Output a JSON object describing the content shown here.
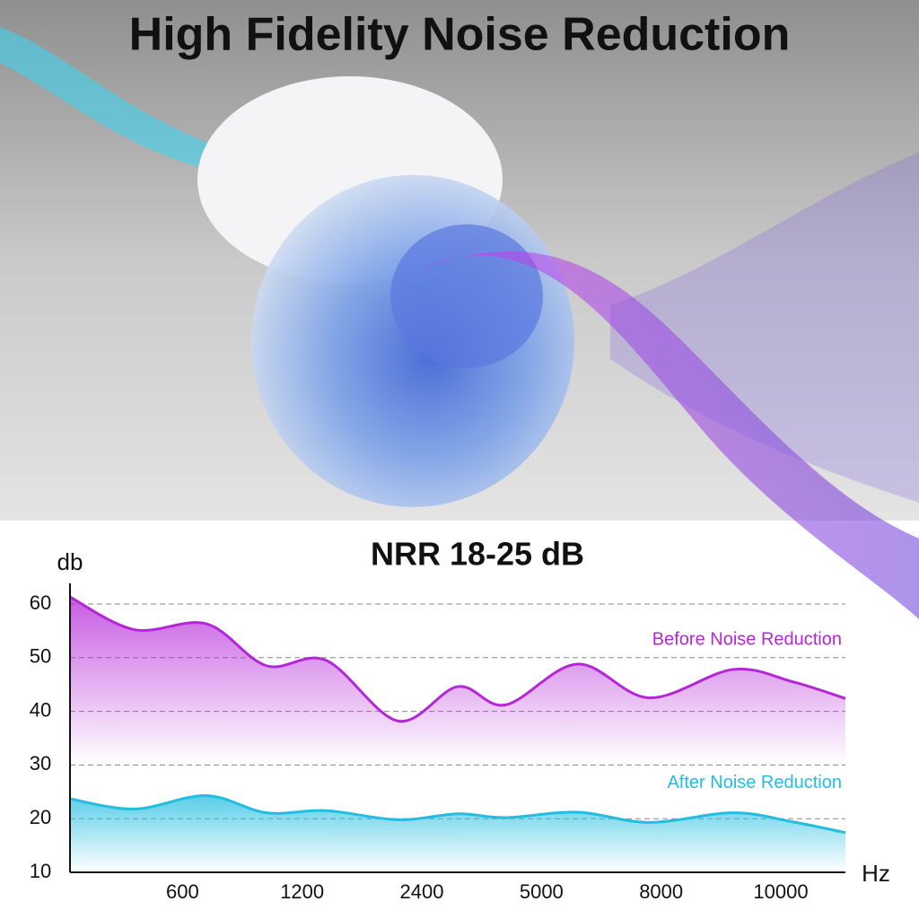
{
  "chart_data": {
    "type": "area",
    "title": "High Fidelity Noise Reduction",
    "subtitle": "NRR 18-25 dB",
    "y_label": "db",
    "x_label": "Hz",
    "x": [
      0.06,
      0.6,
      1.2,
      1.7,
      2.2,
      2.8,
      3.3,
      3.7,
      4.3,
      4.9,
      5.6,
      6.1,
      6.54
    ],
    "xlim": [
      0.06,
      6.54
    ],
    "xticks": [
      {
        "value": 1,
        "label": "600"
      },
      {
        "value": 2,
        "label": "1200"
      },
      {
        "value": 3,
        "label": "2400"
      },
      {
        "value": 4,
        "label": "5000"
      },
      {
        "value": 5,
        "label": "8000"
      },
      {
        "value": 6,
        "label": "10000"
      }
    ],
    "ylim": [
      10,
      61.5
    ],
    "yticks": [
      10,
      20,
      30,
      40,
      50,
      60
    ],
    "grid": true,
    "series": [
      {
        "name": "Before Noise Reduction",
        "color": "#b526d9",
        "values": [
          61.3,
          55.2,
          56.3,
          48.5,
          49.5,
          38.2,
          44.6,
          41.2,
          48.8,
          42.5,
          47.8,
          45.5,
          42.4
        ]
      },
      {
        "name": "After Noise Reduction",
        "color": "#22bde0",
        "values": [
          23.7,
          21.8,
          24.3,
          21.1,
          21.5,
          19.8,
          20.9,
          20.2,
          21.2,
          19.3,
          21.1,
          19.4,
          17.4
        ]
      }
    ]
  }
}
